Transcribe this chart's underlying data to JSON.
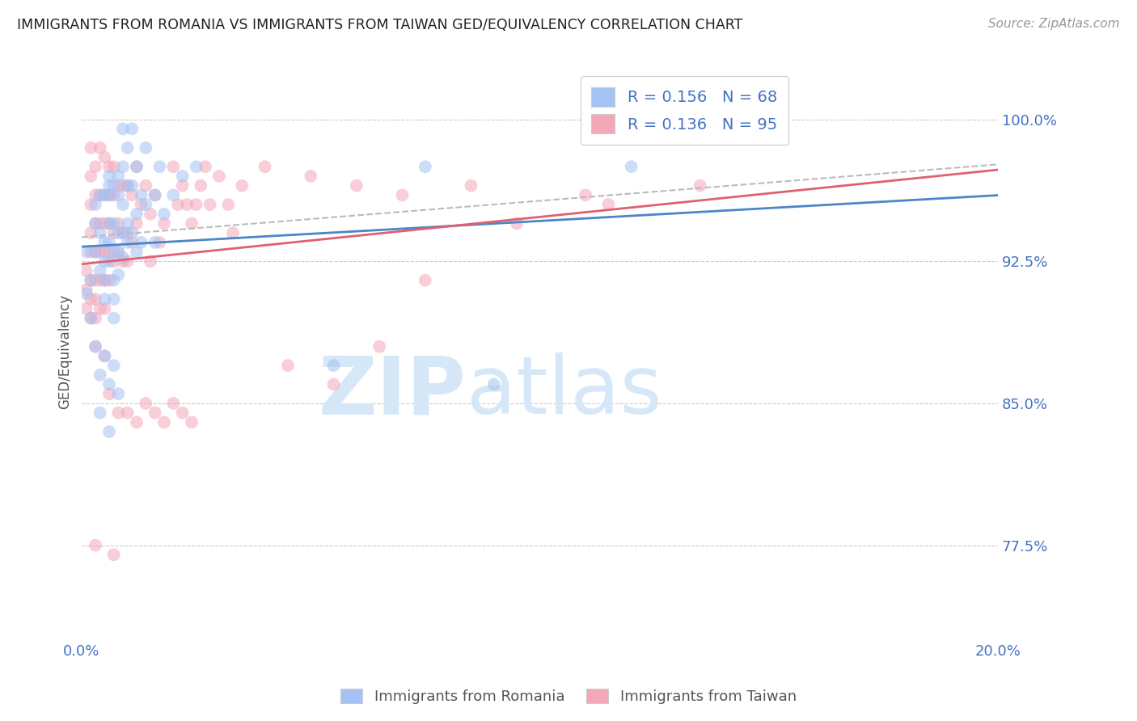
{
  "title": "IMMIGRANTS FROM ROMANIA VS IMMIGRANTS FROM TAIWAN GED/EQUIVALENCY CORRELATION CHART",
  "source": "Source: ZipAtlas.com",
  "ylabel": "GED/Equivalency",
  "ytick_labels": [
    "77.5%",
    "85.0%",
    "92.5%",
    "100.0%"
  ],
  "ytick_values": [
    0.775,
    0.85,
    0.925,
    1.0
  ],
  "xlim": [
    0.0,
    0.2
  ],
  "ylim": [
    0.725,
    1.03
  ],
  "romania_color": "#a4c2f4",
  "taiwan_color": "#f4a7b9",
  "romania_line_color": "#4a86c8",
  "taiwan_line_color": "#e06070",
  "trendline_dash_color": "#bbbbbb",
  "legend_romania_label": "R = 0.156   N = 68",
  "legend_taiwan_label": "R = 0.136   N = 95",
  "romania_scatter_x": [
    0.001,
    0.001,
    0.002,
    0.002,
    0.003,
    0.003,
    0.003,
    0.004,
    0.004,
    0.004,
    0.005,
    0.005,
    0.005,
    0.005,
    0.005,
    0.006,
    0.006,
    0.006,
    0.006,
    0.006,
    0.006,
    0.007,
    0.007,
    0.007,
    0.007,
    0.007,
    0.007,
    0.008,
    0.008,
    0.008,
    0.008,
    0.008,
    0.009,
    0.009,
    0.009,
    0.009,
    0.009,
    0.01,
    0.01,
    0.01,
    0.01,
    0.011,
    0.011,
    0.011,
    0.012,
    0.012,
    0.012,
    0.013,
    0.013,
    0.014,
    0.014,
    0.016,
    0.016,
    0.017,
    0.018,
    0.02,
    0.022,
    0.025,
    0.003,
    0.004,
    0.005,
    0.006,
    0.007,
    0.008,
    0.004,
    0.006,
    0.075,
    0.12,
    0.055,
    0.09
  ],
  "romania_scatter_y": [
    0.908,
    0.93,
    0.895,
    0.915,
    0.93,
    0.955,
    0.945,
    0.96,
    0.94,
    0.92,
    0.96,
    0.935,
    0.925,
    0.915,
    0.905,
    0.97,
    0.965,
    0.96,
    0.945,
    0.935,
    0.925,
    0.965,
    0.945,
    0.93,
    0.915,
    0.905,
    0.895,
    0.97,
    0.96,
    0.94,
    0.93,
    0.918,
    0.995,
    0.975,
    0.955,
    0.94,
    0.927,
    0.985,
    0.965,
    0.945,
    0.935,
    0.995,
    0.965,
    0.94,
    0.975,
    0.95,
    0.93,
    0.96,
    0.935,
    0.985,
    0.955,
    0.96,
    0.935,
    0.975,
    0.95,
    0.96,
    0.97,
    0.975,
    0.88,
    0.865,
    0.875,
    0.86,
    0.87,
    0.855,
    0.845,
    0.835,
    0.975,
    0.975,
    0.87,
    0.86
  ],
  "taiwan_scatter_x": [
    0.001,
    0.001,
    0.001,
    0.002,
    0.002,
    0.002,
    0.002,
    0.002,
    0.002,
    0.002,
    0.002,
    0.003,
    0.003,
    0.003,
    0.003,
    0.003,
    0.003,
    0.003,
    0.004,
    0.004,
    0.004,
    0.004,
    0.004,
    0.004,
    0.005,
    0.005,
    0.005,
    0.005,
    0.005,
    0.005,
    0.006,
    0.006,
    0.006,
    0.006,
    0.006,
    0.007,
    0.007,
    0.007,
    0.007,
    0.008,
    0.008,
    0.008,
    0.009,
    0.009,
    0.009,
    0.01,
    0.01,
    0.01,
    0.011,
    0.011,
    0.012,
    0.012,
    0.013,
    0.014,
    0.015,
    0.015,
    0.016,
    0.017,
    0.018,
    0.02,
    0.021,
    0.022,
    0.023,
    0.024,
    0.025,
    0.026,
    0.027,
    0.028,
    0.03,
    0.032,
    0.033,
    0.035,
    0.003,
    0.005,
    0.006,
    0.008,
    0.01,
    0.012,
    0.014,
    0.016,
    0.018,
    0.02,
    0.022,
    0.024,
    0.003,
    0.007,
    0.085,
    0.11,
    0.135,
    0.075,
    0.095,
    0.115,
    0.04,
    0.05,
    0.06,
    0.07,
    0.045,
    0.055,
    0.065
  ],
  "taiwan_scatter_y": [
    0.92,
    0.91,
    0.9,
    0.985,
    0.97,
    0.955,
    0.94,
    0.93,
    0.915,
    0.905,
    0.895,
    0.975,
    0.96,
    0.945,
    0.93,
    0.915,
    0.905,
    0.895,
    0.985,
    0.96,
    0.945,
    0.93,
    0.915,
    0.9,
    0.98,
    0.96,
    0.945,
    0.93,
    0.915,
    0.9,
    0.975,
    0.96,
    0.945,
    0.93,
    0.915,
    0.975,
    0.96,
    0.94,
    0.925,
    0.965,
    0.945,
    0.93,
    0.965,
    0.94,
    0.925,
    0.965,
    0.94,
    0.925,
    0.96,
    0.935,
    0.975,
    0.945,
    0.955,
    0.965,
    0.95,
    0.925,
    0.96,
    0.935,
    0.945,
    0.975,
    0.955,
    0.965,
    0.955,
    0.945,
    0.955,
    0.965,
    0.975,
    0.955,
    0.97,
    0.955,
    0.94,
    0.965,
    0.88,
    0.875,
    0.855,
    0.845,
    0.845,
    0.84,
    0.85,
    0.845,
    0.84,
    0.85,
    0.845,
    0.84,
    0.775,
    0.77,
    0.965,
    0.96,
    0.965,
    0.915,
    0.945,
    0.955,
    0.975,
    0.97,
    0.965,
    0.96,
    0.87,
    0.86,
    0.88
  ],
  "watermark_zip": "ZIP",
  "watermark_atlas": "atlas",
  "watermark_color": "#d6e8f8",
  "background_color": "#ffffff",
  "grid_color": "#cccccc"
}
